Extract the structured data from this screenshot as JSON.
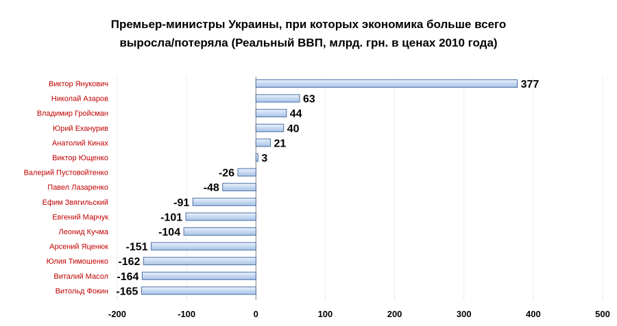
{
  "chart_data": {
    "type": "bar",
    "orientation": "horizontal",
    "title_lines": [
      "Премьер-министры  Украины,  при которых  экономика  больше  всего",
      "выросла/потеряла  (Реальный  ВВП, млрд. грн.  в ценах 2010 года)"
    ],
    "categories": [
      "Виктор Янукович",
      "Николай Азаров",
      "Владимир Гройсман",
      "Юрий Еханурив",
      "Анатолий Кинах",
      "Виктор Ющенко",
      "Валерий Пустовойтенко",
      "Павел Лазаренко",
      "Ефим Звягильский",
      "Евгений  Марчук",
      "Леонид  Кучма",
      "Арсений Яценюк",
      "Юлия Тимошенко",
      "Виталий Масол",
      "Витольд Фокин"
    ],
    "values": [
      377,
      63,
      44,
      40,
      21,
      3,
      -26,
      -48,
      -91,
      -101,
      -104,
      -151,
      -162,
      -164,
      -165
    ],
    "xlim": [
      -200,
      500
    ],
    "xticks": [
      -200,
      -100,
      0,
      100,
      200,
      300,
      400,
      500
    ],
    "grid": "vertical-dashed",
    "legend": "none",
    "colors": {
      "bar_fill": "#c6d9f1",
      "bar_stroke": "#4a6fa5",
      "category_label": "#c00000"
    }
  }
}
